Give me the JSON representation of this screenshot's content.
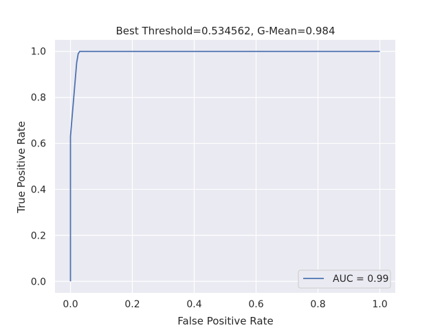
{
  "chart_data": {
    "type": "line",
    "title": "Best Threshold=0.534562, G-Mean=0.984",
    "xlabel": "False Positive Rate",
    "ylabel": "True Positive Rate",
    "xlim": [
      -0.05,
      1.05
    ],
    "ylim": [
      -0.05,
      1.05
    ],
    "x_ticks": [
      0.0,
      0.2,
      0.4,
      0.6,
      0.8,
      1.0
    ],
    "x_tick_labels": [
      "0.0",
      "0.2",
      "0.4",
      "0.6",
      "0.8",
      "1.0"
    ],
    "y_ticks": [
      0.0,
      0.2,
      0.4,
      0.6,
      0.8,
      1.0
    ],
    "y_tick_labels": [
      "0.0",
      "0.2",
      "0.4",
      "0.6",
      "0.8",
      "1.0"
    ],
    "grid": true,
    "legend": "lower-right",
    "background": "#eaeaf2",
    "grid_color": "#ffffff",
    "series": [
      {
        "name": "AUC = 0.99",
        "color": "#4c72b0",
        "x": [
          0.0,
          0.0,
          0.0,
          0.02,
          0.025,
          0.03,
          1.0
        ],
        "y": [
          0.0,
          0.0,
          0.63,
          0.95,
          0.99,
          1.0,
          1.0
        ]
      }
    ]
  }
}
